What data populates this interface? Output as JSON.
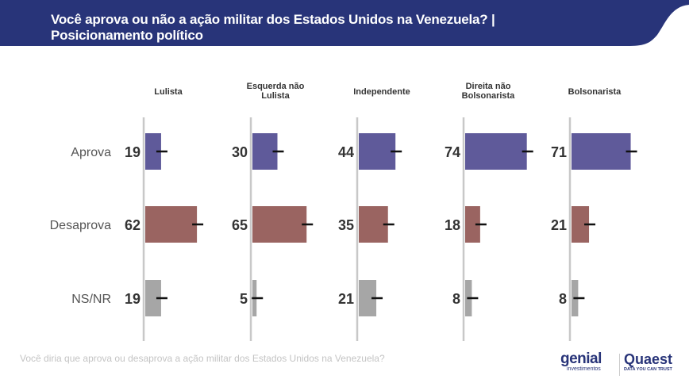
{
  "header": {
    "title_line1": "Você aprova ou não a ação militar dos Estados Unidos na Venezuela? |",
    "title_line2": "Posicionamento político",
    "band_color": "#283479"
  },
  "footer": {
    "question": "Você diria que aprova ou desaprova a ação militar dos Estados Unidos na Venezuela?"
  },
  "logos": {
    "genial": "genial",
    "genial_sub": "investimentos",
    "quaest": "Quaest",
    "quaest_sub": "DATA YOU CAN TRUST"
  },
  "chart_data": {
    "type": "bar",
    "orientation": "horizontal",
    "categories": [
      "Aprova",
      "Desaprova",
      "NS/NR"
    ],
    "panels": [
      {
        "title": [
          "Lulista"
        ],
        "values": [
          19,
          62,
          19
        ]
      },
      {
        "title": [
          "Esquerda não",
          "Lulista"
        ],
        "values": [
          30,
          65,
          5
        ]
      },
      {
        "title": [
          "Independente"
        ],
        "values": [
          44,
          35,
          21
        ]
      },
      {
        "title": [
          "Direita não",
          "Bolsonarista"
        ],
        "values": [
          74,
          18,
          8
        ]
      },
      {
        "title": [
          "Bolsonarista"
        ],
        "values": [
          71,
          21,
          8
        ]
      }
    ],
    "colors": {
      "Aprova": "#5f5a9a",
      "Desaprova": "#9a6461",
      "NS/NR": "#a6a6a6"
    },
    "error_bars": true,
    "grid": false
  }
}
